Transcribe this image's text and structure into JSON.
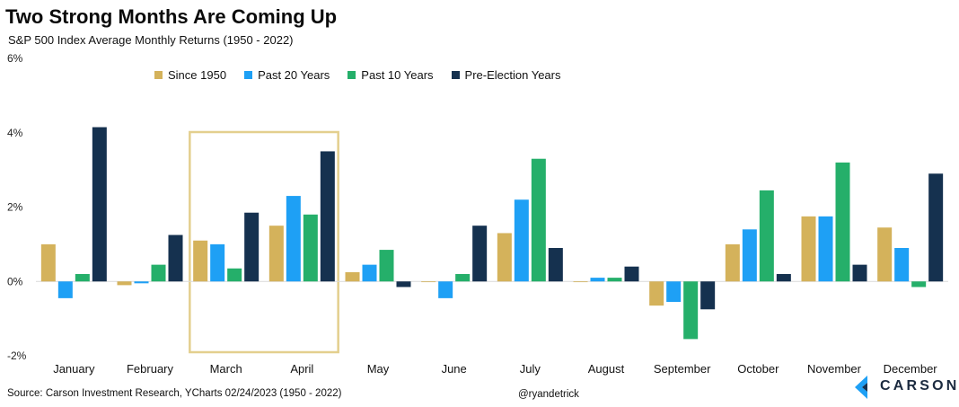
{
  "header": {
    "title": "Two Strong Months Are Coming Up",
    "subtitle": "S&P 500 Index Average Monthly Returns (1950 - 2022)"
  },
  "footer": {
    "source": "Source: Carson Investment Research, YCharts 02/24/2023 (1950 - 2022)",
    "handle": "@ryandetrick",
    "logo_text": "CARSON"
  },
  "chart_data": {
    "type": "bar",
    "categories": [
      "January",
      "February",
      "March",
      "April",
      "May",
      "June",
      "July",
      "August",
      "September",
      "October",
      "November",
      "December"
    ],
    "series": [
      {
        "name": "Since 1950",
        "color": "#D4B25B",
        "values": [
          1.0,
          -0.1,
          1.1,
          1.5,
          0.25,
          0.0,
          1.3,
          0.0,
          -0.65,
          1.0,
          1.75,
          1.45
        ]
      },
      {
        "name": "Past 20 Years",
        "color": "#1EA0F5",
        "values": [
          -0.45,
          -0.05,
          1.0,
          2.3,
          0.45,
          -0.45,
          2.2,
          0.1,
          -0.55,
          1.4,
          1.75,
          0.9
        ]
      },
      {
        "name": "Past 10 Years",
        "color": "#25AF6A",
        "values": [
          0.2,
          0.45,
          0.35,
          1.8,
          0.85,
          0.2,
          3.3,
          0.1,
          -1.55,
          2.45,
          3.2,
          -0.15
        ]
      },
      {
        "name": "Pre-Election Years",
        "color": "#15314F",
        "values": [
          4.15,
          1.25,
          1.85,
          3.5,
          -0.15,
          1.5,
          0.9,
          0.4,
          -0.75,
          0.2,
          0.45,
          2.9
        ]
      }
    ],
    "y_ticks": [
      "-2%",
      "0%",
      "2%",
      "4%",
      "6%"
    ],
    "ylim": [
      -2,
      6
    ],
    "legend_position": "top",
    "grid": false,
    "highlight": {
      "categories": [
        "March",
        "April"
      ],
      "color": "#E3CF8E"
    }
  }
}
